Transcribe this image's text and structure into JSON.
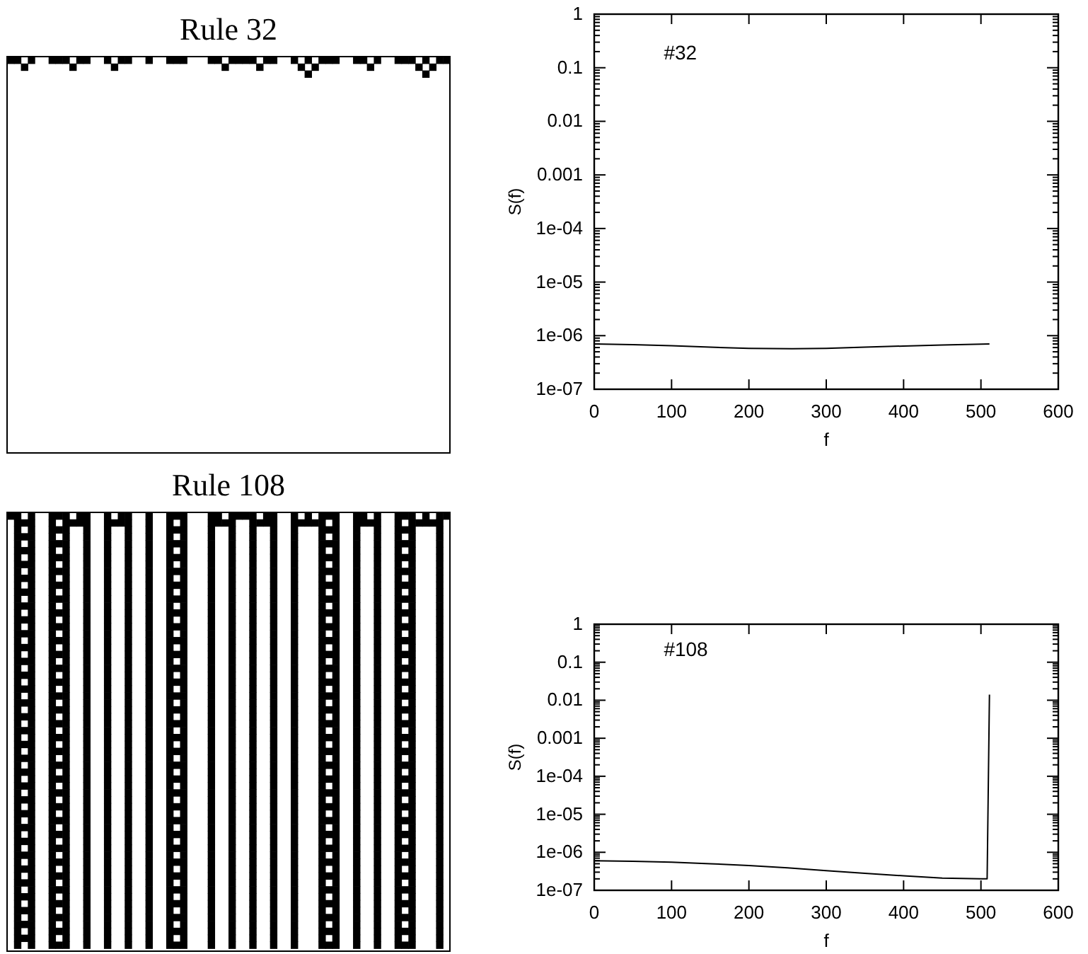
{
  "chart_data": [
    {
      "type": "other",
      "title": "Rule 32"
    },
    {
      "type": "line",
      "xlabel": "f",
      "ylabel": "S(f)",
      "annotations": [
        "#32"
      ],
      "log": "y",
      "grid": false,
      "xlim": [
        0,
        600
      ],
      "xticks": [
        0,
        100,
        200,
        300,
        400,
        500,
        600
      ],
      "ylim": [
        1e-07,
        1
      ],
      "yticks": [
        {
          "value": 1e-07,
          "label": "1e-07"
        },
        {
          "value": 1e-06,
          "label": "1e-06"
        },
        {
          "value": 1e-05,
          "label": "1e-05"
        },
        {
          "value": 0.0001,
          "label": "1e-04"
        },
        {
          "value": 0.001,
          "label": "0.001"
        },
        {
          "value": 0.01,
          "label": "0.01"
        },
        {
          "value": 0.1,
          "label": "0.1"
        },
        {
          "value": 1,
          "label": "1"
        }
      ],
      "series": [
        {
          "color": "#000000",
          "x": [
            0,
            50,
            100,
            150,
            200,
            256,
            300,
            350,
            400,
            450,
            511
          ],
          "values": [
            7e-07,
            6.8e-07,
            6.5e-07,
            6.1e-07,
            5.8e-07,
            5.7e-07,
            5.8e-07,
            6.1e-07,
            6.4e-07,
            6.7e-07,
            7e-07
          ]
        }
      ]
    },
    {
      "type": "other",
      "title": "Rule 108"
    },
    {
      "type": "line",
      "xlabel": "f",
      "ylabel": "S(f)",
      "annotations": [
        "#108"
      ],
      "log": "y",
      "grid": false,
      "xlim": [
        0,
        600
      ],
      "xticks": [
        0,
        100,
        200,
        300,
        400,
        500,
        600
      ],
      "ylim": [
        1e-07,
        1
      ],
      "yticks": [
        {
          "value": 1e-07,
          "label": "1e-07"
        },
        {
          "value": 1e-06,
          "label": "1e-06"
        },
        {
          "value": 1e-05,
          "label": "1e-05"
        },
        {
          "value": 0.0001,
          "label": "1e-04"
        },
        {
          "value": 0.001,
          "label": "0.001"
        },
        {
          "value": 0.01,
          "label": "0.01"
        },
        {
          "value": 0.1,
          "label": "0.1"
        },
        {
          "value": 1,
          "label": "1"
        }
      ],
      "series": [
        {
          "color": "#000000",
          "x": [
            0,
            50,
            100,
            150,
            200,
            250,
            300,
            350,
            400,
            450,
            500,
            508,
            511
          ],
          "values": [
            6e-07,
            5.8e-07,
            5.5e-07,
            5e-07,
            4.5e-07,
            3.9e-07,
            3.3e-07,
            2.8e-07,
            2.4e-07,
            2.1e-07,
            2e-07,
            2e-07,
            0.014
          ]
        }
      ]
    }
  ]
}
